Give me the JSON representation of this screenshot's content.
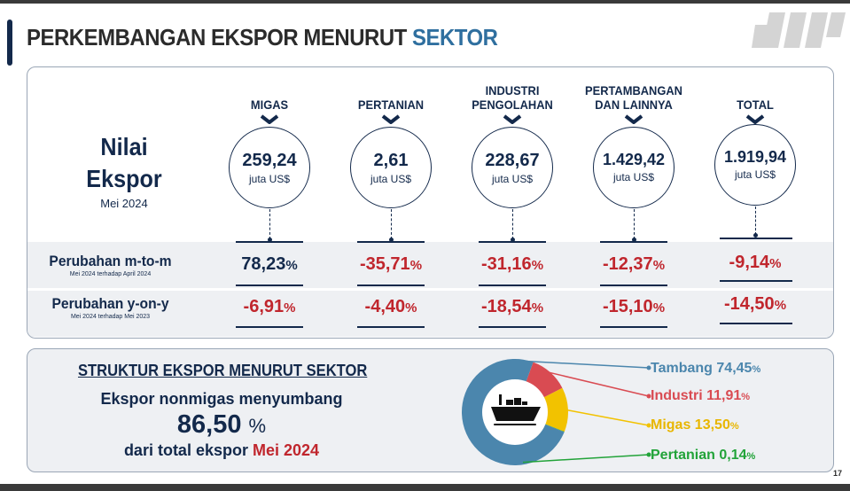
{
  "header": {
    "title_main": "PERKEMBANGAN EKSPOR MENURUT",
    "title_highlight": "SEKTOR"
  },
  "nilai": {
    "title_line1": "Nilai",
    "title_line2": "Ekspor",
    "period": "Mei 2024",
    "unit": "juta US$"
  },
  "sectors": [
    {
      "name": "MIGAS",
      "value": "259,24",
      "mtm": "78,23",
      "yoy": "-6,91",
      "mtm_color": "#13294b"
    },
    {
      "name": "PERTANIAN",
      "value": "2,61",
      "mtm": "-35,71",
      "yoy": "-4,40",
      "mtm_color": "#c0262d"
    },
    {
      "name_line1": "INDUSTRI",
      "name_line2": "PENGOLAHAN",
      "value": "228,67",
      "mtm": "-31,16",
      "yoy": "-18,54",
      "mtm_color": "#c0262d"
    },
    {
      "name_line1": "PERTAMBANGAN",
      "name_line2": "DAN LAINNYA",
      "value": "1.429,42",
      "mtm": "-12,37",
      "yoy": "-15,10",
      "mtm_color": "#c0262d"
    },
    {
      "name": "TOTAL",
      "value": "1.919,94",
      "mtm": "-9,14",
      "yoy": "-14,50",
      "mtm_color": "#c0262d"
    }
  ],
  "percent_sign": "%",
  "rows": {
    "mtm_label": "Perubahan m-to-m",
    "mtm_sub": "Mei 2024 terhadap April 2024",
    "yoy_label": "Perubahan y-on-y",
    "yoy_sub": "Mei 2024 terhadap Mei 2023",
    "negative_color": "#c0262d",
    "positive_color": "#13294b"
  },
  "structure": {
    "title": "STRUKTUR EKSPOR MENURUT SEKTOR",
    "line1": "Ekspor nonmigas menyumbang",
    "value": "86,50",
    "percent_sign": "%",
    "line3_prefix": "dari total ekspor",
    "line3_period": "Mei 2024",
    "icon": "cargo-ship-icon"
  },
  "chart_data": {
    "type": "pie",
    "donut": true,
    "slices": [
      {
        "label": "Tambang",
        "value": 74.45,
        "display": "74,45",
        "color": "#4b86ad"
      },
      {
        "label": "Industri",
        "value": 11.91,
        "display": "11,91",
        "color": "#d94b52"
      },
      {
        "label": "Migas",
        "value": 13.5,
        "display": "13,50",
        "color": "#f2c200"
      },
      {
        "label": "Pertanian",
        "value": 0.14,
        "display": "0,14",
        "color": "#22a339"
      }
    ]
  },
  "footer": {
    "page_number": "17"
  },
  "colors": {
    "navy": "#13294b",
    "accent_blue": "#2f6f9f",
    "red": "#c0262d",
    "panel_border": "#9aa6b6",
    "band": "#eef0f3"
  }
}
